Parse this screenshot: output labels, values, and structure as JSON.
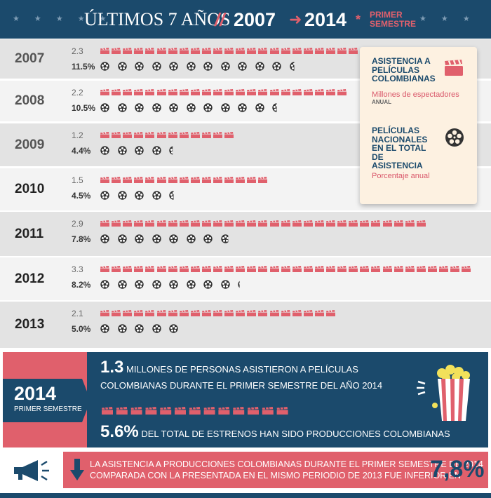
{
  "header": {
    "title": "ÚLTIMOS 7 AÑOS",
    "slash": "//",
    "year_start": "2007",
    "year_end": "2014",
    "asterisk": "*",
    "semester": "PRIMER SEMESTRE",
    "stars": "★ ★ ★ ★ ★"
  },
  "legend": {
    "attendance_title": "ASISTENCIA A PELÍCULAS COLOMBIANAS",
    "attendance_subtitle": "Millones de espectadores",
    "attendance_note": "ANUAL",
    "share_title": "PELÍCULAS NACIONALES EN EL TOTAL DE ASISTENCIA",
    "share_subtitle": "Porcentaje anual",
    "colors": {
      "clapper": "#e0606c",
      "reel": "#333333",
      "navy": "#1b4a6c"
    },
    "icons": [
      "clapperboard-icon",
      "film-reel-icon"
    ]
  },
  "chart_data": {
    "type": "table",
    "units_per_clapper": 0.1,
    "units_per_reel": 1,
    "rows": [
      {
        "year": "2007",
        "attendance": 2.3,
        "attendance_label": "2.3",
        "share": 11.5,
        "share_label": "11.5%"
      },
      {
        "year": "2008",
        "attendance": 2.2,
        "attendance_label": "2.2",
        "share": 10.5,
        "share_label": "10.5%"
      },
      {
        "year": "2009",
        "attendance": 1.2,
        "attendance_label": "1.2",
        "share": 4.4,
        "share_label": "4.4%"
      },
      {
        "year": "2010",
        "attendance": 1.5,
        "attendance_label": "1.5",
        "share": 4.5,
        "share_label": "4.5%"
      },
      {
        "year": "2011",
        "attendance": 2.9,
        "attendance_label": "2.9",
        "share": 7.8,
        "share_label": "7.8%"
      },
      {
        "year": "2012",
        "attendance": 3.3,
        "attendance_label": "3.3",
        "share": 8.2,
        "share_label": "8.2%"
      },
      {
        "year": "2013",
        "attendance": 2.1,
        "attendance_label": "2.1",
        "share": 5.0,
        "share_label": "5.0%"
      }
    ]
  },
  "summary_2014": {
    "year": "2014",
    "semester": "PRIMER SEMESTRE",
    "attendance_value": "1.3",
    "attendance_text_1": "MILLONES DE PERSONAS ASISTIERON A PELÍCULAS",
    "attendance_text_2": "COLOMBIANAS DURANTE EL PRIMER SEMESTRE DEL AÑO 2014",
    "attendance": 1.3,
    "premieres_value": "5.6%",
    "premieres_text": "DEL TOTAL DE ESTRENOS HAN SIDO PRODUCCIONES COLOMBIANAS",
    "icon": "popcorn-icon"
  },
  "bottom": {
    "text_1": "LA ASISTENCIA A PRODUCCIONES COLOMBIANAS DURANTE EL PRIMER SEMESTRE DE 2014",
    "text_2": "COMPARADA CON LA PRESENTADA EN EL MISMO PERIODIO DE 2013 FUE INFERIOR EN",
    "value": "7,8%",
    "icons": [
      "megaphone-icon",
      "down-arrow-icon"
    ]
  }
}
